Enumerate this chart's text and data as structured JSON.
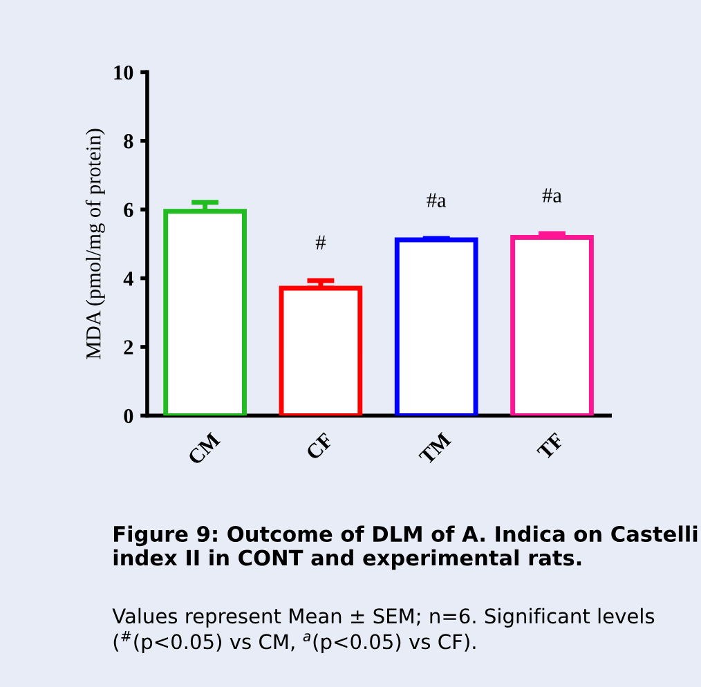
{
  "chart_data": {
    "type": "bar",
    "title": "Figure 9: Outcome of DLM of A. Indica on Castelli index II in CONT and experimental rats.",
    "ylabel": "MDA (pmol/mg of protein)",
    "categories": [
      "CM",
      "CF",
      "TM",
      "TF"
    ],
    "values": [
      5.95,
      3.71,
      5.12,
      5.19
    ],
    "errors": [
      0.26,
      0.22,
      0.04,
      0.11
    ],
    "colors": [
      "#22bb22",
      "#ff0000",
      "#0000ff",
      "#ff1493"
    ],
    "ylim": [
      0,
      10
    ],
    "yticks": [
      0,
      2,
      4,
      6,
      8,
      10
    ],
    "grid": false,
    "value_labels": [
      null,
      "#",
      "#a",
      "#a"
    ],
    "annotations": [
      "Values represent Mean ± SEM; n=6. Significant levels ($^{#}$(p<0.05) vs CM, $^{a}$(p<0.05) vs CF)."
    ]
  }
}
